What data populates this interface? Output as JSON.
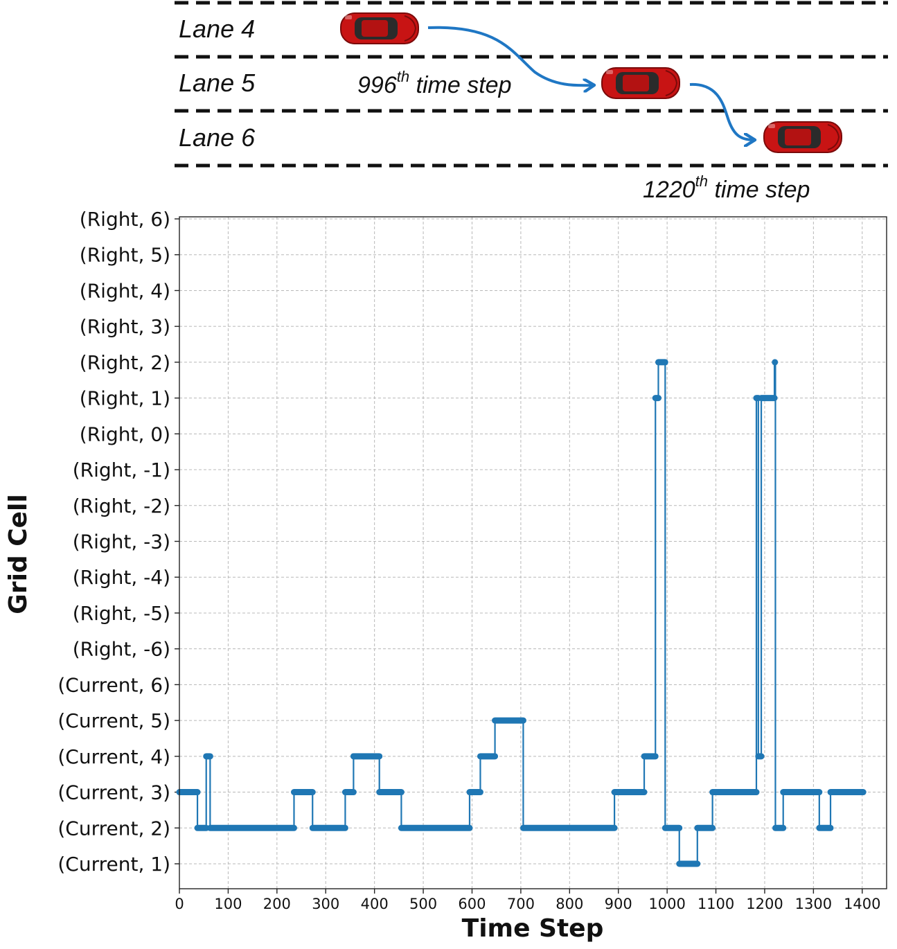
{
  "scene": {
    "lanes": [
      "Lane 4",
      "Lane 5",
      "Lane 6"
    ],
    "annotations": [
      {
        "number": "996",
        "sup": "th",
        "text": " time step"
      },
      {
        "number": "1220",
        "sup": "th",
        "text": " time step"
      }
    ],
    "colors": {
      "car": "#c81414",
      "arrow": "#1f77c4",
      "lane_line": "#111111"
    }
  },
  "chart_data": {
    "type": "line",
    "title": "",
    "xlabel": "Time Step",
    "ylabel": "Grid Cell",
    "xlim": [
      0,
      1450
    ],
    "xticks": [
      0,
      100,
      200,
      300,
      400,
      500,
      600,
      700,
      800,
      900,
      1000,
      1100,
      1200,
      1300,
      1400
    ],
    "categories": [
      "(Current, 1)",
      "(Current, 2)",
      "(Current, 3)",
      "(Current, 4)",
      "(Current, 5)",
      "(Current, 6)",
      "(Right, -6)",
      "(Right, -5)",
      "(Right, -4)",
      "(Right, -3)",
      "(Right, -2)",
      "(Right, -1)",
      "(Right, 0)",
      "(Right, 1)",
      "(Right, 2)",
      "(Right, 3)",
      "(Right, 4)",
      "(Right, 5)",
      "(Right, 6)"
    ],
    "grid": true,
    "color": "#1f77b4",
    "series": [
      {
        "segments": [
          {
            "x0": 0,
            "x1": 37,
            "y": "(Current, 3)"
          },
          {
            "x0": 37,
            "x1": 55,
            "y": "(Current, 2)"
          },
          {
            "x0": 55,
            "x1": 63,
            "y": "(Current, 4)"
          },
          {
            "x0": 63,
            "x1": 235,
            "y": "(Current, 2)"
          },
          {
            "x0": 235,
            "x1": 273,
            "y": "(Current, 3)"
          },
          {
            "x0": 273,
            "x1": 340,
            "y": "(Current, 2)"
          },
          {
            "x0": 340,
            "x1": 357,
            "y": "(Current, 3)"
          },
          {
            "x0": 357,
            "x1": 410,
            "y": "(Current, 4)"
          },
          {
            "x0": 410,
            "x1": 455,
            "y": "(Current, 3)"
          },
          {
            "x0": 455,
            "x1": 595,
            "y": "(Current, 2)"
          },
          {
            "x0": 595,
            "x1": 617,
            "y": "(Current, 3)"
          },
          {
            "x0": 617,
            "x1": 647,
            "y": "(Current, 4)"
          },
          {
            "x0": 647,
            "x1": 705,
            "y": "(Current, 5)"
          },
          {
            "x0": 705,
            "x1": 892,
            "y": "(Current, 2)"
          },
          {
            "x0": 892,
            "x1": 953,
            "y": "(Current, 3)"
          },
          {
            "x0": 953,
            "x1": 976,
            "y": "(Current, 4)"
          },
          {
            "x0": 976,
            "x1": 982,
            "y": "(Right, 1)"
          },
          {
            "x0": 982,
            "x1": 996,
            "y": "(Right, 2)"
          },
          {
            "x0": 996,
            "x1": 1025,
            "y": "(Current, 2)"
          },
          {
            "x0": 1025,
            "x1": 1062,
            "y": "(Current, 1)"
          },
          {
            "x0": 1062,
            "x1": 1093,
            "y": "(Current, 2)"
          },
          {
            "x0": 1093,
            "x1": 1183,
            "y": "(Current, 3)"
          },
          {
            "x0": 1183,
            "x1": 1187,
            "y": "(Right, 1)"
          },
          {
            "x0": 1187,
            "x1": 1193,
            "y": "(Current, 4)"
          },
          {
            "x0": 1193,
            "x1": 1220,
            "y": "(Right, 1)"
          },
          {
            "x0": 1220,
            "x1": 1222,
            "y": "(Right, 2)"
          },
          {
            "x0": 1222,
            "x1": 1238,
            "y": "(Current, 2)"
          },
          {
            "x0": 1238,
            "x1": 1312,
            "y": "(Current, 3)"
          },
          {
            "x0": 1312,
            "x1": 1335,
            "y": "(Current, 2)"
          },
          {
            "x0": 1335,
            "x1": 1402,
            "y": "(Current, 3)"
          }
        ]
      }
    ]
  }
}
